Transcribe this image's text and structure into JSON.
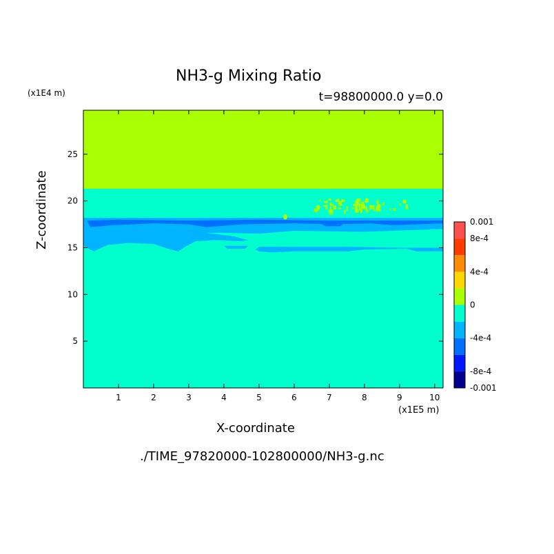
{
  "chart_data": {
    "type": "heatmap",
    "title": "NH3-g Mixing Ratio",
    "subtitle": "t=98800000.0 y=0.0",
    "xlabel": "X-coordinate",
    "ylabel": "Z-coordinate",
    "x_unit": "(x1E5 m)",
    "z_unit": "(x1E4 m)",
    "source_file": "./TIME_97820000-102800000/NH3-g.nc",
    "xlim": [
      0,
      10.24
    ],
    "ylim": [
      0,
      29.7
    ],
    "x_ticks": [
      "1",
      "2",
      "3",
      "4",
      "5",
      "6",
      "7",
      "8",
      "9",
      "10"
    ],
    "y_ticks": [
      "5",
      "10",
      "15",
      "20",
      "25"
    ],
    "colorbar": {
      "range": [
        -0.001,
        0.001
      ],
      "levels": [
        -0.001,
        -0.0008,
        -0.0006,
        -0.0004,
        -0.0002,
        0,
        0.0002,
        0.0004,
        0.0006,
        0.0008,
        0.001
      ],
      "tick_labels": [
        "0.001",
        "8e-4",
        "4e-4",
        "0",
        "-4e-4",
        "-8e-4",
        "-0.001"
      ],
      "colors": [
        "#00008f",
        "#0018ff",
        "#0070ff",
        "#00b4ff",
        "#00ffcc",
        "#aaff00",
        "#ffd700",
        "#ff8c00",
        "#ff3c00",
        "#ff5050"
      ]
    },
    "regions": [
      {
        "name": "upper layer",
        "z_range": [
          21.3,
          29.7
        ],
        "value_range": [
          0,
          0.0002
        ],
        "color": "#aaff00"
      },
      {
        "name": "lower domain",
        "z_range": [
          0,
          21.3
        ],
        "value_range": [
          -0.0002,
          0
        ],
        "color": "#00ffcc"
      },
      {
        "name": "negative band",
        "z_range": [
          14.5,
          18.2
        ],
        "value_range": [
          -0.0004,
          -0.0002
        ],
        "color": "#00b4ff"
      },
      {
        "name": "strong negative streak",
        "z_range": [
          17.5,
          18.0
        ],
        "value_range": [
          -0.0006,
          -0.0004
        ],
        "color": "#0070ff"
      },
      {
        "name": "positive patches",
        "x_range": [
          6.5,
          9.3
        ],
        "z_range": [
          19,
          20.3
        ],
        "value_range": [
          0,
          0.0002
        ],
        "color": "#aaff00"
      }
    ]
  }
}
